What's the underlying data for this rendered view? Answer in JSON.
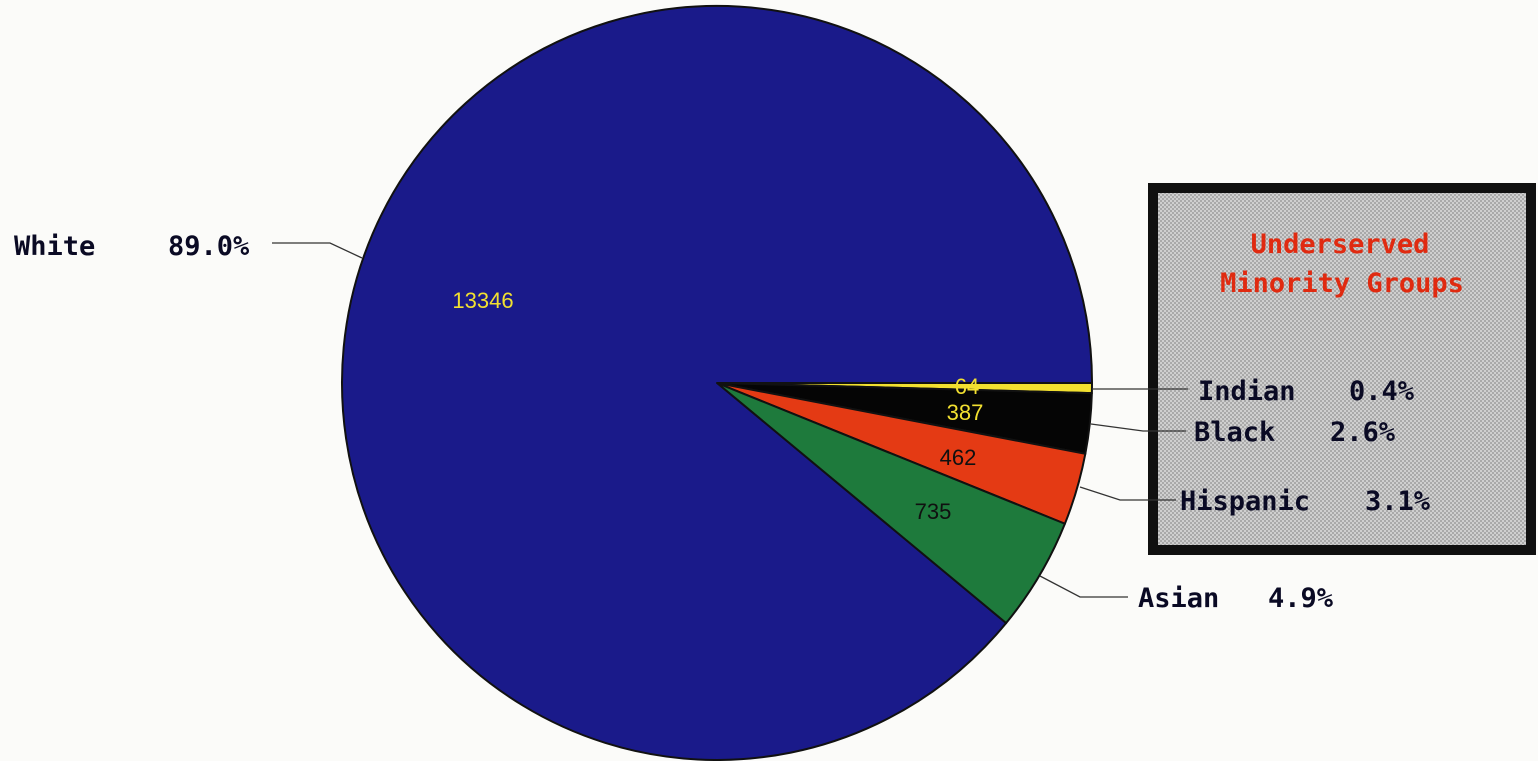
{
  "chart_data": {
    "type": "pie",
    "start_angle_deg": 0,
    "direction": "clockwise",
    "slices": [
      {
        "name": "Indian",
        "value": 64,
        "percent_label": "0.4%",
        "color": "#f2e030",
        "value_color": "#f2e030"
      },
      {
        "name": "Black",
        "value": 387,
        "percent_label": "2.6%",
        "color": "#050505",
        "value_color": "#f2e030"
      },
      {
        "name": "Hispanic",
        "value": 462,
        "percent_label": "3.1%",
        "color": "#e43a14",
        "value_color": "#101010"
      },
      {
        "name": "Asian",
        "value": 735,
        "percent_label": "4.9%",
        "color": "#1e7a3c",
        "value_color": "#101010"
      },
      {
        "name": "White",
        "value": 13346,
        "percent_label": "89.0%",
        "color": "#1a1a8a",
        "value_color": "#f2e030"
      }
    ],
    "annotation_box": {
      "title_line1": "Underserved",
      "title_line2": "Minority Groups"
    }
  }
}
